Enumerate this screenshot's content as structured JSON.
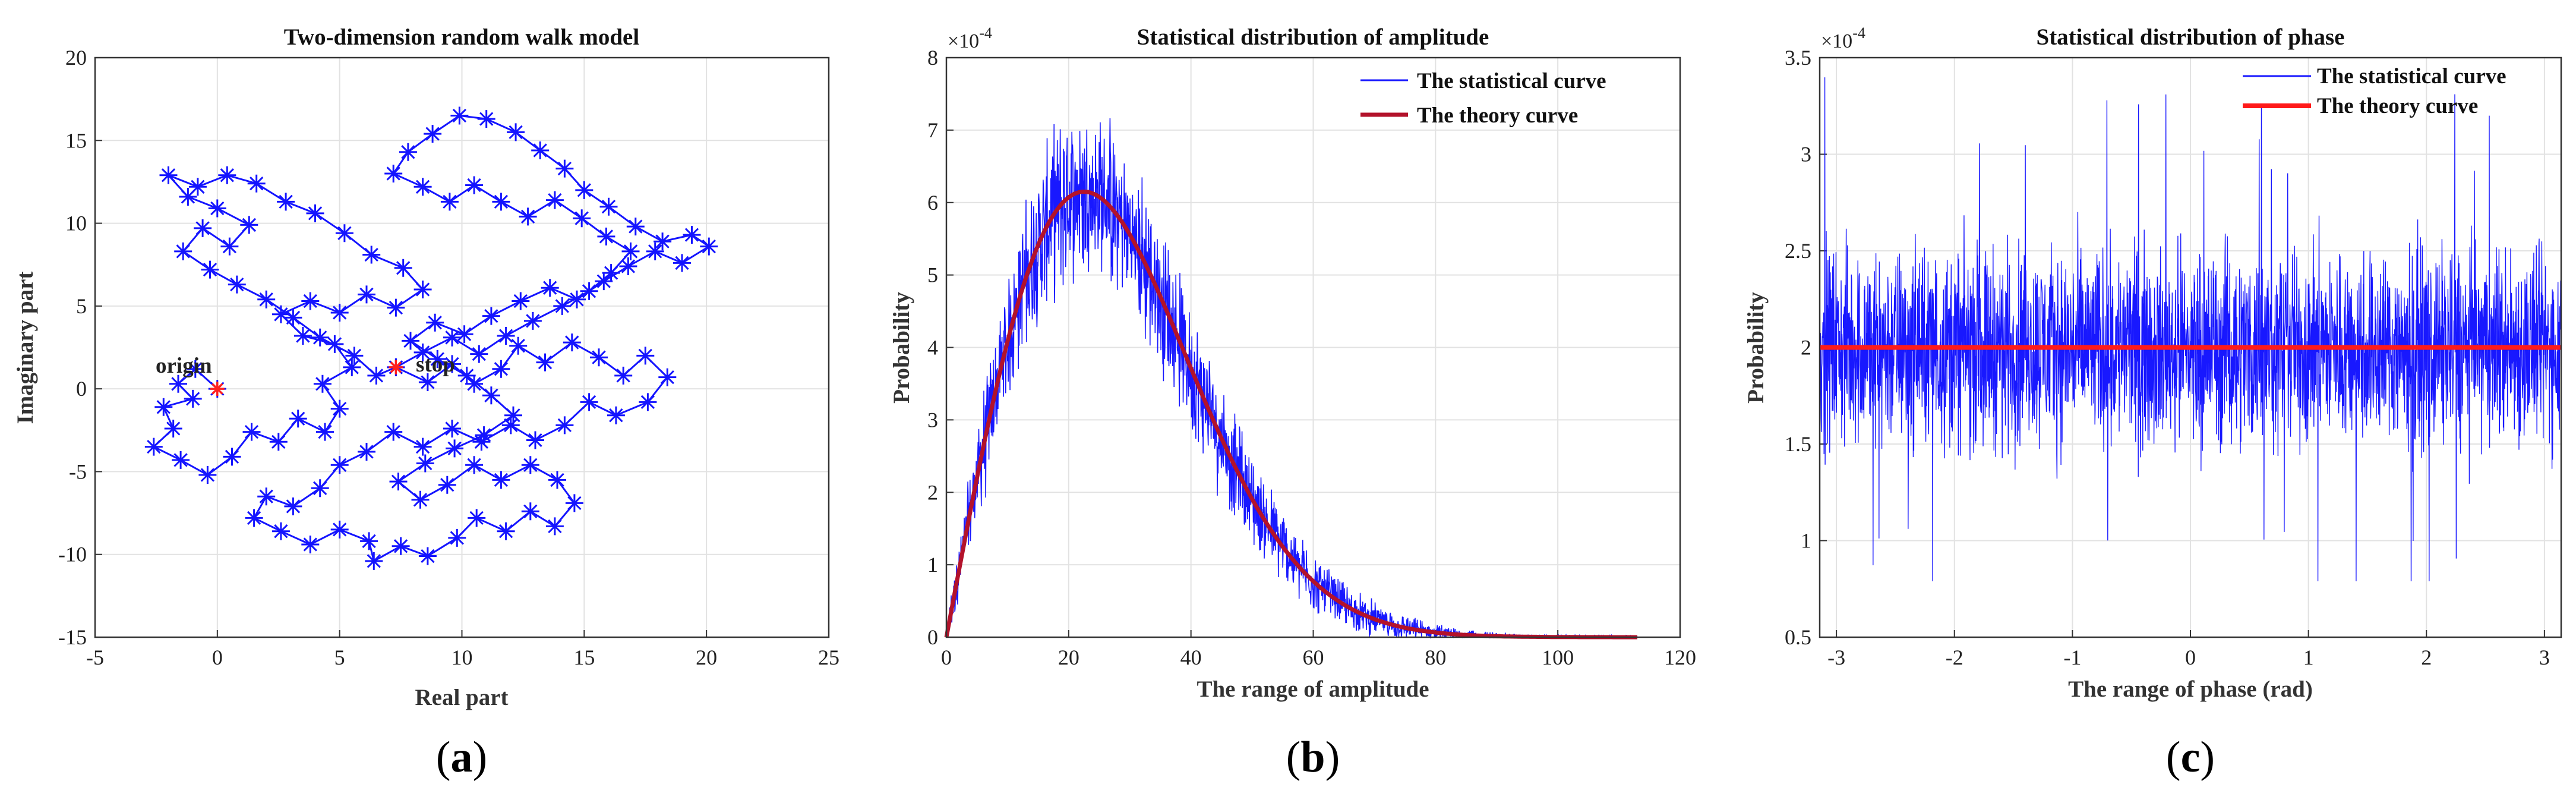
{
  "chart_data": [
    {
      "type": "scatter",
      "title": "Two-dimension random walk model",
      "xlabel": "Real part",
      "ylabel": "Imaginary part",
      "xlim": [
        -5,
        25
      ],
      "ylim": [
        -15,
        20
      ],
      "xticks": [
        -5,
        0,
        5,
        10,
        15,
        20,
        25
      ],
      "yticks": [
        -15,
        -10,
        -5,
        0,
        5,
        10,
        15,
        20
      ],
      "grid": true,
      "series": [
        {
          "marker": "asterisk",
          "line": "solid",
          "color": "#1414ff",
          "points": [
            [
              0,
              0
            ],
            [
              -0.9,
              1.2
            ],
            [
              -1.6,
              0.3
            ],
            [
              -1.0,
              -0.6
            ],
            [
              -2.2,
              -1.1
            ],
            [
              -1.8,
              -2.4
            ],
            [
              -2.6,
              -3.5
            ],
            [
              -1.5,
              -4.3
            ],
            [
              -0.4,
              -5.2
            ],
            [
              0.6,
              -4.1
            ],
            [
              1.4,
              -2.6
            ],
            [
              2.5,
              -3.2
            ],
            [
              3.3,
              -1.8
            ],
            [
              4.4,
              -2.6
            ],
            [
              5.0,
              -1.2
            ],
            [
              4.3,
              0.3
            ],
            [
              5.5,
              1.3
            ],
            [
              4.8,
              2.7
            ],
            [
              3.5,
              3.2
            ],
            [
              2.6,
              4.5
            ],
            [
              3.8,
              5.3
            ],
            [
              5.0,
              4.6
            ],
            [
              6.1,
              5.7
            ],
            [
              7.3,
              4.9
            ],
            [
              8.4,
              6.0
            ],
            [
              7.6,
              7.3
            ],
            [
              6.3,
              8.1
            ],
            [
              5.2,
              9.4
            ],
            [
              4.0,
              10.6
            ],
            [
              2.8,
              11.3
            ],
            [
              1.6,
              12.4
            ],
            [
              0.4,
              12.9
            ],
            [
              -0.8,
              12.2
            ],
            [
              -2.0,
              12.9
            ],
            [
              -1.2,
              11.6
            ],
            [
              0.0,
              10.9
            ],
            [
              1.3,
              9.9
            ],
            [
              0.5,
              8.6
            ],
            [
              -0.6,
              9.7
            ],
            [
              -1.4,
              8.3
            ],
            [
              -0.3,
              7.2
            ],
            [
              0.8,
              6.3
            ],
            [
              2.0,
              5.4
            ],
            [
              3.1,
              4.3
            ],
            [
              4.2,
              3.1
            ],
            [
              5.6,
              2.0
            ],
            [
              6.5,
              0.8
            ],
            [
              7.3,
              1.3
            ],
            [
              8.6,
              0.4
            ],
            [
              9.6,
              1.5
            ],
            [
              10.5,
              0.3
            ],
            [
              11.6,
              1.2
            ],
            [
              12.3,
              2.6
            ],
            [
              13.4,
              1.6
            ],
            [
              14.5,
              2.8
            ],
            [
              15.6,
              1.9
            ],
            [
              16.6,
              0.8
            ],
            [
              17.5,
              2.0
            ],
            [
              18.4,
              0.7
            ],
            [
              17.6,
              -0.8
            ],
            [
              16.3,
              -1.6
            ],
            [
              15.2,
              -0.8
            ],
            [
              14.2,
              -2.2
            ],
            [
              13.0,
              -3.1
            ],
            [
              12.0,
              -2.2
            ],
            [
              10.8,
              -3.2
            ],
            [
              9.6,
              -2.4
            ],
            [
              8.4,
              -3.5
            ],
            [
              7.2,
              -2.6
            ],
            [
              6.1,
              -3.8
            ],
            [
              5.0,
              -4.6
            ],
            [
              4.2,
              -6.0
            ],
            [
              3.1,
              -7.1
            ],
            [
              2.0,
              -6.5
            ],
            [
              1.5,
              -7.8
            ],
            [
              2.6,
              -8.6
            ],
            [
              3.8,
              -9.4
            ],
            [
              5.0,
              -8.5
            ],
            [
              6.2,
              -9.2
            ],
            [
              6.4,
              -10.4
            ],
            [
              7.5,
              -9.5
            ],
            [
              8.6,
              -10.1
            ],
            [
              9.8,
              -9.0
            ],
            [
              10.6,
              -7.8
            ],
            [
              11.8,
              -8.6
            ],
            [
              12.8,
              -7.4
            ],
            [
              13.8,
              -8.3
            ],
            [
              14.6,
              -6.9
            ],
            [
              13.9,
              -5.5
            ],
            [
              12.8,
              -4.6
            ],
            [
              11.6,
              -5.5
            ],
            [
              10.5,
              -4.6
            ],
            [
              9.4,
              -5.8
            ],
            [
              8.3,
              -6.7
            ],
            [
              7.4,
              -5.6
            ],
            [
              8.5,
              -4.5
            ],
            [
              9.7,
              -3.6
            ],
            [
              10.9,
              -2.8
            ],
            [
              12.1,
              -1.6
            ],
            [
              11.2,
              -0.4
            ],
            [
              10.2,
              0.8
            ],
            [
              9.0,
              1.8
            ],
            [
              7.9,
              2.9
            ],
            [
              8.9,
              4.0
            ],
            [
              10.1,
              3.3
            ],
            [
              11.2,
              4.4
            ],
            [
              12.4,
              5.3
            ],
            [
              13.6,
              6.1
            ],
            [
              14.7,
              5.4
            ],
            [
              15.8,
              6.5
            ],
            [
              16.8,
              7.4
            ],
            [
              17.9,
              8.3
            ],
            [
              19.0,
              7.6
            ],
            [
              20.1,
              8.6
            ],
            [
              19.4,
              9.3
            ],
            [
              18.2,
              8.9
            ],
            [
              17.1,
              9.8
            ],
            [
              16.0,
              11.0
            ],
            [
              15.0,
              12.0
            ],
            [
              14.2,
              13.3
            ],
            [
              13.2,
              14.4
            ],
            [
              12.2,
              15.5
            ],
            [
              11.0,
              16.3
            ],
            [
              9.9,
              16.5
            ],
            [
              8.8,
              15.4
            ],
            [
              7.8,
              14.3
            ],
            [
              7.2,
              13.0
            ],
            [
              8.4,
              12.2
            ],
            [
              9.5,
              11.3
            ],
            [
              10.5,
              12.3
            ],
            [
              11.6,
              11.3
            ],
            [
              12.7,
              10.4
            ],
            [
              13.8,
              11.4
            ],
            [
              14.9,
              10.3
            ],
            [
              15.9,
              9.2
            ],
            [
              16.9,
              8.3
            ],
            [
              16.1,
              7.0
            ],
            [
              15.2,
              5.9
            ],
            [
              14.1,
              5.0
            ],
            [
              12.9,
              4.1
            ],
            [
              11.8,
              3.2
            ],
            [
              10.7,
              2.1
            ],
            [
              9.6,
              3.1
            ],
            [
              8.4,
              2.2
            ],
            [
              7.3,
              1.3
            ]
          ]
        },
        {
          "points": [
            [
              0,
              0
            ],
            [
              7.3,
              1.3
            ]
          ],
          "marker": "asterisk",
          "color": "#ff2020"
        }
      ],
      "annotations": [
        {
          "text": "origin",
          "x": 0,
          "y": 0
        },
        {
          "text": "stop",
          "x": 7.3,
          "y": 1.3
        }
      ]
    },
    {
      "type": "line",
      "title": "Statistical distribution of amplitude",
      "xlabel": "The range of amplitude",
      "ylabel": "Probability",
      "scale_label": "×10",
      "scale_exp": "-4",
      "xlim": [
        0,
        120
      ],
      "ylim": [
        0,
        8
      ],
      "xticks": [
        0,
        20,
        40,
        60,
        80,
        100,
        120
      ],
      "yticks": [
        0,
        1,
        2,
        3,
        4,
        5,
        6,
        7,
        8
      ],
      "grid": true,
      "legend_position": "top-right",
      "series": [
        {
          "name": "The statistical curve",
          "color": "#1818ff",
          "x_range": [
            0,
            113
          ],
          "mean": "rayleigh(sigma=22.5, peak=6.15)",
          "noise_amplitude": 1.2
        },
        {
          "name": "The theory curve",
          "color": "#b3122b",
          "formula": "rayleigh",
          "sigma": 22.5,
          "peak": 6.15,
          "x_range": [
            0,
            113
          ]
        }
      ]
    },
    {
      "type": "line",
      "title": "Statistical distribution of phase",
      "xlabel": "The range of phase (rad)",
      "ylabel": "Probability",
      "scale_label": "×10",
      "scale_exp": "-4",
      "xlim": [
        -3.1416,
        3.1416
      ],
      "ylim": [
        0.5,
        3.5
      ],
      "xticks": [
        -3,
        -2,
        -1,
        0,
        1,
        2,
        3
      ],
      "yticks": [
        0.5,
        1,
        1.5,
        2,
        2.5,
        3,
        3.5
      ],
      "grid": true,
      "legend_position": "top-right",
      "series": [
        {
          "name": "The statistical curve",
          "color": "#1818ff",
          "mean": 2.0,
          "noise_amplitude": 0.55,
          "min": 0.79,
          "max": 3.44
        },
        {
          "name": "The theory curve",
          "color": "#ff1a1a",
          "value": 2.0
        }
      ]
    }
  ],
  "captions": [
    {
      "open": "(",
      "letter": "a",
      "close": ")"
    },
    {
      "open": "(",
      "letter": "b",
      "close": ")"
    },
    {
      "open": "(",
      "letter": "c",
      "close": ")"
    }
  ]
}
